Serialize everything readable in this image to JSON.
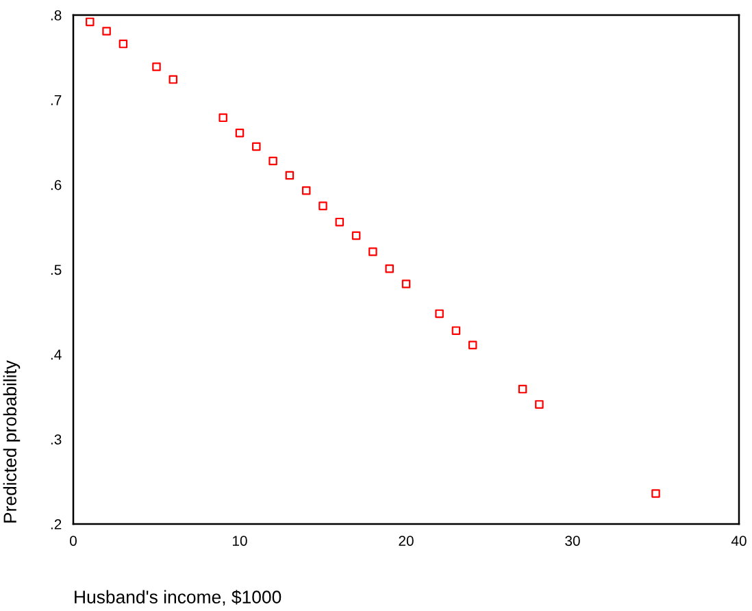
{
  "chart_data": {
    "type": "scatter",
    "xlabel": "Husband's income, $1000",
    "ylabel": "Predicted probability",
    "x": [
      1,
      2,
      3,
      5,
      6,
      9,
      10,
      11,
      12,
      13,
      14,
      15,
      16,
      17,
      18,
      19,
      20,
      22,
      23,
      24,
      27,
      28,
      35
    ],
    "series": [
      {
        "color": "#ff0000",
        "values": [
          0.792,
          0.781,
          0.766,
          0.739,
          0.724,
          0.679,
          0.661,
          0.645,
          0.628,
          0.611,
          0.593,
          0.575,
          0.556,
          0.54,
          0.521,
          0.501,
          0.483,
          0.448,
          0.428,
          0.411,
          0.359,
          0.341,
          0.236
        ]
      }
    ],
    "xlim": [
      0,
      40
    ],
    "xticks": [
      0,
      10,
      20,
      30,
      40
    ],
    "ylim": [
      0.2,
      0.8
    ],
    "yticks": [
      {
        "value": 0.2,
        "label": ".2"
      },
      {
        "value": 0.3,
        "label": ".3"
      },
      {
        "value": 0.4,
        "label": ".4"
      },
      {
        "value": 0.5,
        "label": ".5"
      },
      {
        "value": 0.6,
        "label": ".6"
      },
      {
        "value": 0.7,
        "label": ".7"
      },
      {
        "value": 0.8,
        "label": ".8"
      }
    ],
    "marker": "square",
    "grid": false,
    "legend": false
  }
}
